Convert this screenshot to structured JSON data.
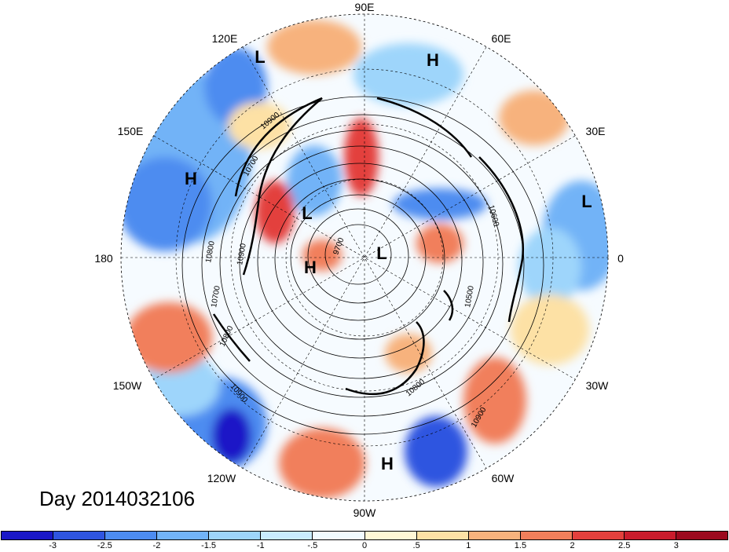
{
  "title": "Day 2014032106",
  "longitude_labels": [
    "90E",
    "60E",
    "30E",
    "0",
    "30W",
    "60W",
    "90W",
    "120W",
    "150W",
    "180",
    "150E",
    "120E"
  ],
  "pressure_centers": [
    {
      "id": "l1",
      "letter": "L"
    },
    {
      "id": "h1",
      "letter": "H"
    },
    {
      "id": "h2",
      "letter": "H"
    },
    {
      "id": "l2",
      "letter": "L"
    },
    {
      "id": "l3",
      "letter": "L"
    },
    {
      "id": "h3",
      "letter": "H"
    },
    {
      "id": "l4",
      "letter": "L"
    },
    {
      "id": "h4",
      "letter": "H"
    }
  ],
  "contour_labels": [
    "10900",
    "10700",
    "10800",
    "10900",
    "10700",
    "10800",
    "10900",
    "9700",
    "10600",
    "10500",
    "10800",
    "10900"
  ],
  "colorbar": {
    "colors": [
      "#1a18c7",
      "#2f55e0",
      "#4d8cf0",
      "#72b3f7",
      "#9ed5fb",
      "#c9ecff",
      "#f1fbff",
      "#fff7d6",
      "#fde1a5",
      "#f7b27d",
      "#f17f5b",
      "#e3403d",
      "#c91c2c",
      "#9c0a1e"
    ],
    "tick_labels": [
      "-3",
      "-2.5",
      "-2",
      "-1.5",
      "-1",
      "-.5",
      "0",
      ".5",
      "1",
      "1.5",
      "2",
      "2.5",
      "3"
    ]
  }
}
